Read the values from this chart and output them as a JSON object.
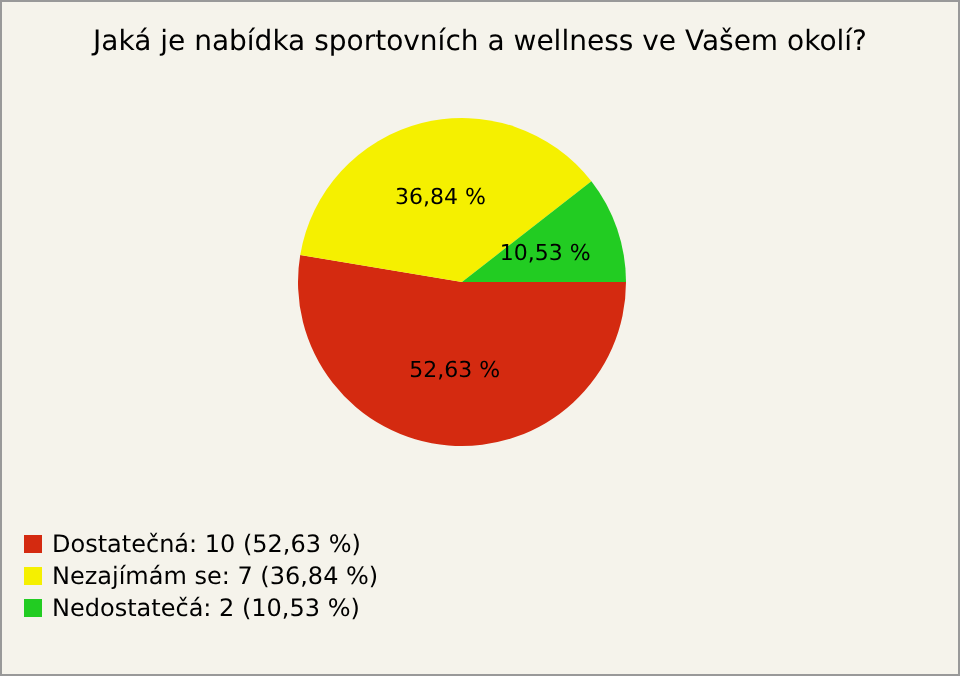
{
  "chart_data": {
    "type": "pie",
    "title": "Jaká je nabídka sportovních a wellness ve Vašem okolí?",
    "categories": [
      "Dostatečná: 10 (52,63 %)",
      "Nezajímám se: 7 (36,84 %)",
      "Nedostatečá: 2 (10,53 %)"
    ],
    "values": [
      52.63,
      36.84,
      10.53
    ],
    "value_labels": [
      "52,63 %",
      "36,84 %",
      "10,53 %"
    ],
    "colors": [
      "#d42a10",
      "#f5f000",
      "#22cc22"
    ],
    "legend": "bottom left"
  }
}
